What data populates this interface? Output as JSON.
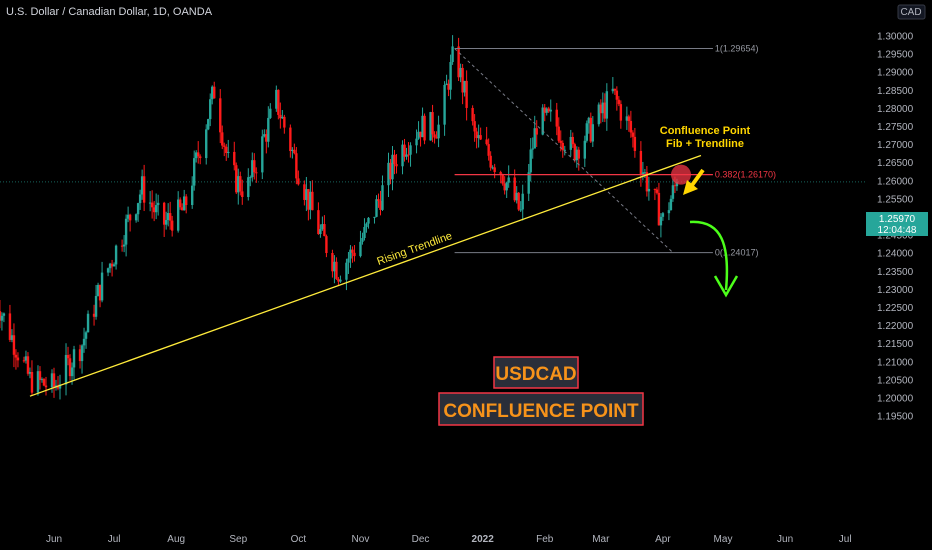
{
  "header": {
    "title": "U.S. Dollar / Canadian Dollar, 1D, OANDA"
  },
  "currency_badge": "CAD",
  "price_tag": {
    "price": "1.25970",
    "countdown": "12:04:48"
  },
  "colors": {
    "up": "#26a69a",
    "down": "#ff1a1a",
    "trendline": "#ffeb3b",
    "fib_level": "#f23645",
    "background": "#000000",
    "box_text": "#f7931a",
    "box_border": "#f23645"
  },
  "annotations": {
    "confluence_line1": "Confluence Point",
    "confluence_line2": "Fib + Trendline",
    "trendline_label": "Rising Trendline",
    "box_symbol": "USDCAD",
    "box_title": "CONFLUENCE POINT"
  },
  "fib": {
    "level_1_label": "1(1.29654)",
    "level_0382_label": "0.382(1.26170)",
    "level_0_label": "0(1.24017)"
  },
  "chart_data": {
    "type": "candlestick",
    "title": "U.S. Dollar / Canadian Dollar, 1D, OANDA",
    "x_tick_labels": [
      "Jun",
      "Jul",
      "Aug",
      "Sep",
      "Oct",
      "Nov",
      "Dec",
      "2022",
      "Feb",
      "Mar",
      "Apr",
      "May",
      "Jun",
      "Jul"
    ],
    "y_tick_labels": [
      "1.30000",
      "1.29500",
      "1.29000",
      "1.28500",
      "1.28000",
      "1.27500",
      "1.27000",
      "1.26500",
      "1.26000",
      "1.25500",
      "1.25000",
      "1.24500",
      "1.24000",
      "1.23500",
      "1.23000",
      "1.22500",
      "1.22000",
      "1.21500",
      "1.21000",
      "1.20500",
      "1.20000",
      "1.19500"
    ],
    "ylim": [
      1.193,
      1.303
    ],
    "last_price": 1.2597,
    "price_path": [
      [
        "2021-05-01",
        1.23
      ],
      [
        "2021-05-20",
        1.205
      ],
      [
        "2021-06-01",
        1.203
      ],
      [
        "2021-06-15",
        1.215
      ],
      [
        "2021-06-25",
        1.232
      ],
      [
        "2021-07-05",
        1.245
      ],
      [
        "2021-07-15",
        1.258
      ],
      [
        "2021-07-25",
        1.248
      ],
      [
        "2021-08-05",
        1.252
      ],
      [
        "2021-08-20",
        1.285
      ],
      [
        "2021-08-28",
        1.262
      ],
      [
        "2021-09-05",
        1.257
      ],
      [
        "2021-09-20",
        1.282
      ],
      [
        "2021-09-28",
        1.268
      ],
      [
        "2021-10-10",
        1.248
      ],
      [
        "2021-10-21",
        1.235
      ],
      [
        "2021-11-03",
        1.245
      ],
      [
        "2021-11-20",
        1.268
      ],
      [
        "2021-12-01",
        1.275
      ],
      [
        "2021-12-10",
        1.275
      ],
      [
        "2021-12-18",
        1.296
      ],
      [
        "2021-12-28",
        1.272
      ],
      [
        "2022-01-10",
        1.263
      ],
      [
        "2022-01-20",
        1.251
      ],
      [
        "2022-01-28",
        1.276
      ],
      [
        "2022-02-05",
        1.277
      ],
      [
        "2022-02-15",
        1.268
      ],
      [
        "2022-02-25",
        1.275
      ],
      [
        "2022-03-07",
        1.284
      ],
      [
        "2022-03-15",
        1.275
      ],
      [
        "2022-03-25",
        1.258
      ],
      [
        "2022-04-01",
        1.249
      ],
      [
        "2022-04-08",
        1.2597
      ]
    ],
    "trendline": {
      "start": [
        "2021-05-20",
        1.2005
      ],
      "end": [
        "2022-04-20",
        1.267
      ],
      "label": "Rising Trendline"
    },
    "fib_retracement": {
      "from": [
        "2021-12-18",
        1.29654
      ],
      "to": [
        "2022-04-06",
        1.24017
      ],
      "levels": [
        {
          "ratio": 1,
          "price": 1.29654
        },
        {
          "ratio": 0.382,
          "price": 1.2617
        },
        {
          "ratio": 0,
          "price": 1.24017
        }
      ]
    },
    "annotations": [
      "Confluence Point",
      "Fib + Trendline",
      "Rising Trendline",
      "USDCAD",
      "CONFLUENCE POINT"
    ]
  }
}
